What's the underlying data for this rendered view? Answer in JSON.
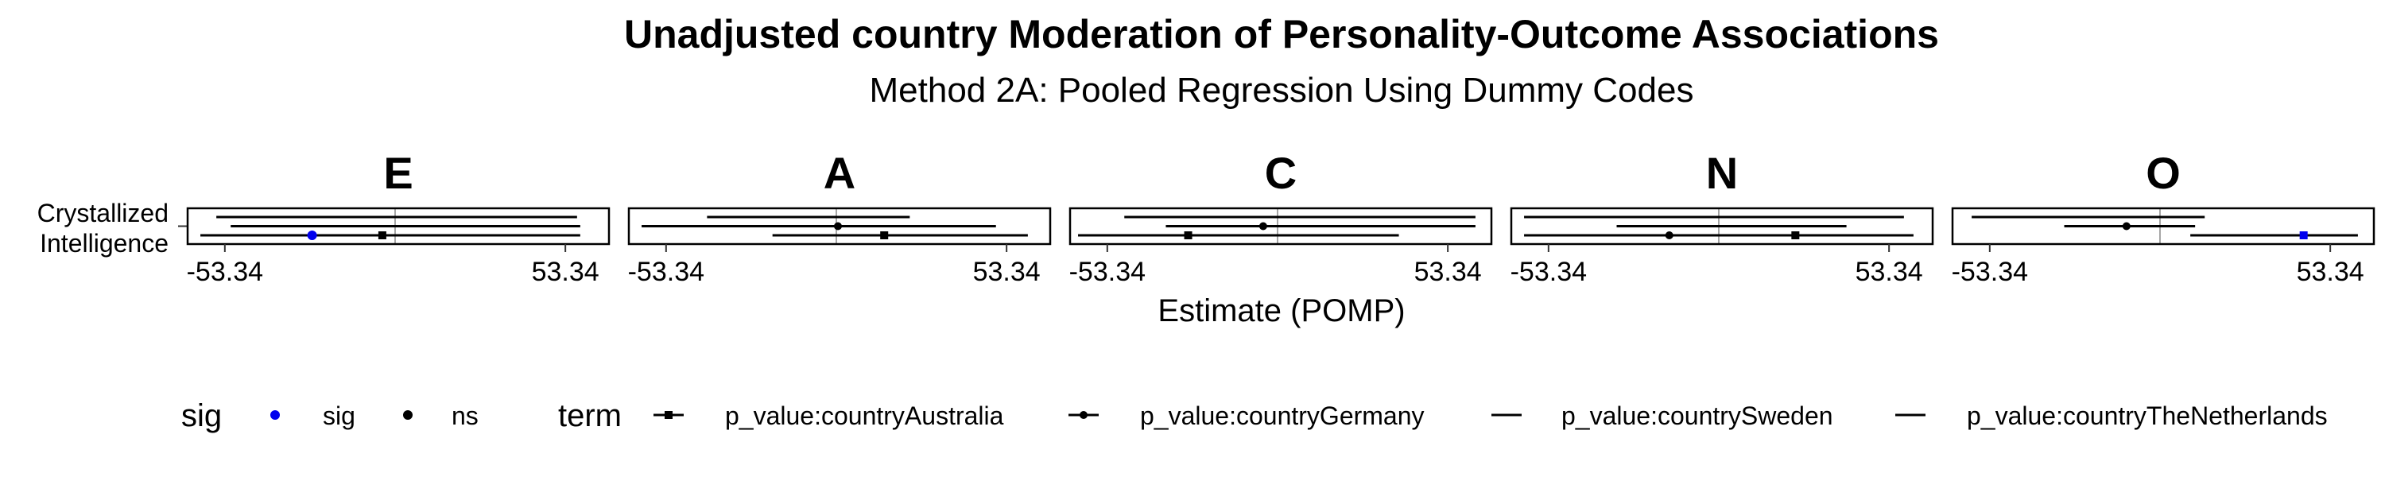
{
  "chart_data": {
    "type": "forest",
    "title": "Unadjusted country Moderation of Personality-Outcome Associations",
    "subtitle": "Method 2A: Pooled Regression Using Dummy Codes",
    "xlabel": "Estimate (POMP)",
    "row_label": "Crystallized Intelligence",
    "x_tick_labels": [
      "-53.34",
      "53.34"
    ],
    "xlim": [
      -65,
      67
    ],
    "facets": [
      {
        "label": "E",
        "series": [
          {
            "term": "p_value:countrySweden",
            "estimate": -1.5,
            "lower": -56.0,
            "upper": 57.0,
            "sig": "ns",
            "show_point": false
          },
          {
            "term": "p_value:countryGermany",
            "estimate": -0.5,
            "lower": -51.5,
            "upper": 58.0,
            "sig": "ns",
            "show_point": false
          },
          {
            "term": "p_value:countryAustralia",
            "estimate": -4.0,
            "lower": -52.0,
            "upper": -1.0,
            "sig": "ns",
            "show_point": true
          },
          {
            "term": "p_value:countryTheNetherlands",
            "estimate": -26.0,
            "lower": -61.0,
            "upper": 58.0,
            "sig": "sig",
            "show_point": true
          }
        ]
      },
      {
        "label": "A",
        "series": [
          {
            "term": "p_value:countrySweden",
            "estimate": 0.0,
            "lower": -40.5,
            "upper": 23.0,
            "sig": "ns",
            "show_point": false
          },
          {
            "term": "p_value:countryGermany",
            "estimate": 0.5,
            "lower": -61.0,
            "upper": 50.0,
            "sig": "ns",
            "show_point": true
          },
          {
            "term": "p_value:countryAustralia",
            "estimate": 15.0,
            "lower": -20.0,
            "upper": 60.0,
            "sig": "ns",
            "show_point": true
          }
        ]
      },
      {
        "label": "C",
        "series": [
          {
            "term": "p_value:countrySweden",
            "estimate": 0.0,
            "lower": -48.0,
            "upper": 62.0,
            "sig": "ns",
            "show_point": false
          },
          {
            "term": "p_value:countryGermany",
            "estimate": -4.5,
            "lower": -35.0,
            "upper": 62.0,
            "sig": "ns",
            "show_point": true
          },
          {
            "term": "p_value:countryAustralia",
            "estimate": -28.0,
            "lower": -62.5,
            "upper": 38.0,
            "sig": "ns",
            "show_point": true
          }
        ]
      },
      {
        "label": "N",
        "series": [
          {
            "term": "p_value:countrySweden",
            "estimate": 0.0,
            "lower": -61.0,
            "upper": 58.0,
            "sig": "ns",
            "show_point": false
          },
          {
            "term": "p_value:countryTheNetherlands",
            "estimate": 0.0,
            "lower": -32.0,
            "upper": 40.0,
            "sig": "ns",
            "show_point": false
          },
          {
            "term": "p_value:countryGermany",
            "estimate": -15.5,
            "lower": -61.0,
            "upper": 60.0,
            "sig": "ns",
            "show_point": true
          },
          {
            "term": "p_value:countryAustralia",
            "estimate": 24.0,
            "lower": -42.0,
            "upper": 61.0,
            "sig": "ns",
            "show_point": true
          }
        ]
      },
      {
        "label": "O",
        "series": [
          {
            "term": "p_value:countrySweden",
            "estimate": 0.0,
            "lower": -59.0,
            "upper": 14.0,
            "sig": "ns",
            "show_point": false
          },
          {
            "term": "p_value:countryGermany",
            "estimate": -10.5,
            "lower": -30.0,
            "upper": 11.0,
            "sig": "ns",
            "show_point": true
          },
          {
            "term": "p_value:countryAustralia",
            "estimate": 45.0,
            "lower": 9.5,
            "upper": 62.0,
            "sig": "sig",
            "show_point": true
          }
        ]
      }
    ],
    "legend": {
      "position": "bottom",
      "sig_title": "sig",
      "sig_items": [
        {
          "label": "sig",
          "color": "#0000ee"
        },
        {
          "label": "ns",
          "color": "#000000"
        }
      ],
      "term_title": "term",
      "term_items": [
        {
          "label": "p_value:countryAustralia",
          "shape": "square"
        },
        {
          "label": "p_value:countryGermany",
          "shape": "circle"
        },
        {
          "label": "p_value:countrySweden",
          "shape": "none"
        },
        {
          "label": "p_value:countryTheNetherlands",
          "shape": "none"
        }
      ]
    }
  }
}
